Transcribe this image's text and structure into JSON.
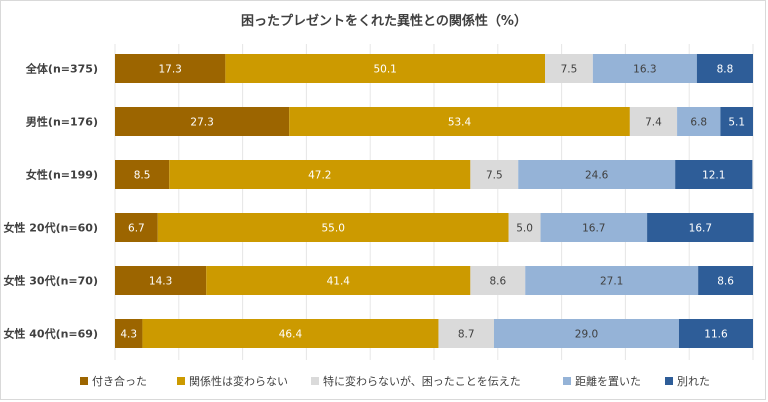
{
  "chart_data": {
    "type": "bar",
    "orientation": "horizontal",
    "stacked": true,
    "title": "困ったプレゼントをくれた異性との関係性（%）",
    "categories": [
      "全体(n=375)",
      "男性(n=176)",
      "女性(n=199)",
      "女性 20代(n=60)",
      "女性 30代(n=70)",
      "女性 40代(n=69)"
    ],
    "series": [
      {
        "name": "付き合った",
        "color": "#9c6500",
        "label_color": "#ffffff",
        "values": [
          17.3,
          27.3,
          8.5,
          6.7,
          14.3,
          4.3
        ]
      },
      {
        "name": "関係性は変わらない",
        "color": "#cc9a00",
        "label_color": "#ffffff",
        "values": [
          50.1,
          53.4,
          47.2,
          55.0,
          41.4,
          46.4
        ]
      },
      {
        "name": "特に変わらないが、困ったことを伝えた",
        "color": "#dadada",
        "label_color": "#404040",
        "values": [
          7.5,
          7.4,
          7.5,
          5.0,
          8.6,
          8.7
        ]
      },
      {
        "name": "距離を置いた",
        "color": "#95b3d7",
        "label_color": "#404040",
        "values": [
          16.3,
          6.8,
          24.6,
          16.7,
          27.1,
          29.0
        ]
      },
      {
        "name": "別れた",
        "color": "#2e5d98",
        "label_color": "#ffffff",
        "values": [
          8.8,
          5.1,
          12.1,
          16.7,
          8.6,
          11.6
        ]
      }
    ],
    "xlim": [
      0,
      100
    ],
    "grid": true,
    "legend_position": "bottom"
  }
}
